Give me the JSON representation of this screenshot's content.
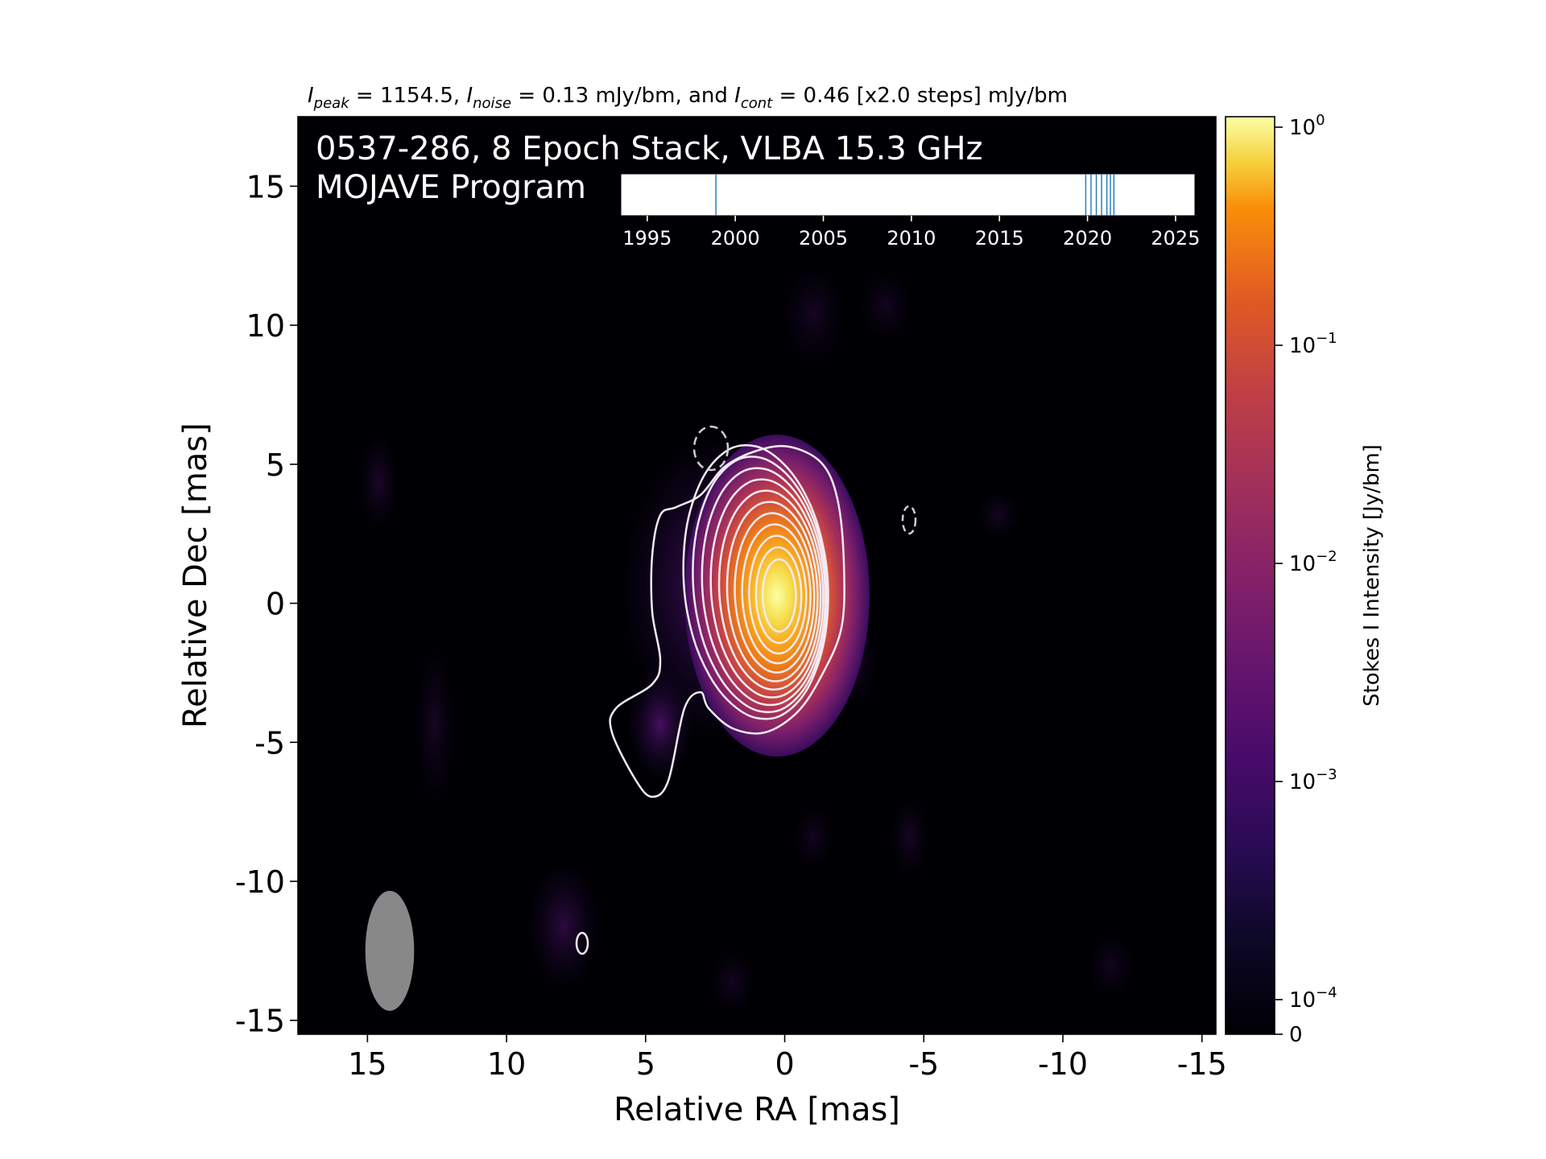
{
  "chart_data": {
    "type": "heatmap",
    "header": {
      "peak_sym": "I",
      "peak_sub": "peak",
      "peak_text": " = 1154.5, ",
      "noise_sym": "I",
      "noise_sub": "noise",
      "noise_text": " = 0.13 mJy/bm, and ",
      "cont_sym": "I",
      "cont_sub": "cont",
      "cont_text": " = 0.46 [x2.0 steps] mJy/bm"
    },
    "title_line1": "0537-286, 8 Epoch Stack, VLBA 15.3 GHz",
    "title_line2": "MOJAVE Program",
    "xlabel": "Relative RA [mas]",
    "ylabel": "Relative Dec [mas]",
    "xlim": [
      17.5,
      -15.5
    ],
    "ylim": [
      -15.5,
      17.5
    ],
    "xticks": [
      15,
      10,
      5,
      0,
      -5,
      -10,
      -15
    ],
    "yticks": [
      15,
      10,
      5,
      0,
      -5,
      -10,
      -15
    ],
    "grid": false,
    "colormap": "inferno",
    "colorbar": {
      "label": "Stokes I Intensity [Jy/bm]",
      "scale": "log",
      "ticks": [
        {
          "value": 1,
          "base": "10",
          "exp": "0"
        },
        {
          "value": 0.1,
          "base": "10",
          "exp": "−1"
        },
        {
          "value": 0.01,
          "base": "10",
          "exp": "−2"
        },
        {
          "value": 0.001,
          "base": "10",
          "exp": "−3"
        },
        {
          "value": 0.0001,
          "base": "10",
          "exp": "−4"
        },
        {
          "value": 0,
          "base": "0",
          "exp": ""
        }
      ]
    },
    "epoch_timeline": {
      "xlim": [
        1993.5,
        2026.1
      ],
      "ticks": [
        1995,
        2000,
        2005,
        2010,
        2015,
        2020,
        2025
      ],
      "epochs": [
        1998.9,
        2019.9,
        2020.2,
        2020.5,
        2020.8,
        2021.1,
        2021.3,
        2021.5
      ]
    },
    "beam": {
      "ra": 14.2,
      "dec": -12.5,
      "major_mas": 3.2,
      "minor_mas": 1.3,
      "pa_deg": 0,
      "color": "#888888"
    },
    "contours": {
      "color": "#f4eaf4",
      "levels_mjy": [
        0.46,
        0.92,
        1.84,
        3.68,
        7.36,
        14.7,
        29.4,
        58.9,
        118,
        236,
        471,
        942
      ],
      "negative_level_mjy": -0.46
    }
  }
}
